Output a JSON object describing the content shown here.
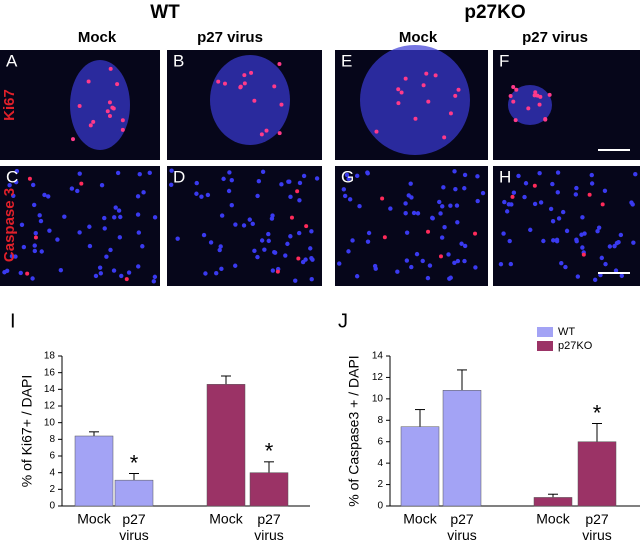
{
  "figure": {
    "groups": [
      "WT",
      "p27KO"
    ],
    "columns": [
      "Mock",
      "p27 virus",
      "Mock",
      "p27 virus"
    ],
    "rows": [
      "Ki67",
      "Caspase 3"
    ],
    "panels": [
      "A",
      "B",
      "E",
      "F",
      "C",
      "D",
      "G",
      "H"
    ]
  },
  "chart_data": [
    {
      "type": "bar",
      "label": "I",
      "y_label": "% of Ki67+ / DAPI",
      "categories": [
        "Mock",
        "p27 virus",
        "Mock",
        "p27 virus"
      ],
      "series": [
        {
          "color": "#a3a3f5",
          "values": [
            8.4,
            3.1,
            null,
            null
          ],
          "errors": [
            0.5,
            0.8,
            null,
            null
          ]
        },
        {
          "color": "#9b3366",
          "values": [
            null,
            null,
            14.6,
            4.0
          ],
          "errors": [
            null,
            null,
            1.0,
            1.3
          ]
        }
      ],
      "significance": [
        null,
        "*",
        null,
        "*"
      ],
      "ylim": [
        0,
        18
      ],
      "yticks": [
        0,
        2,
        4,
        6,
        8,
        10,
        12,
        14,
        16,
        18
      ]
    },
    {
      "type": "bar",
      "label": "J",
      "y_label": "% of Caspase3 + / DAPI",
      "categories": [
        "Mock",
        "p27 virus",
        "Mock",
        "p27 virus"
      ],
      "series": [
        {
          "name": "WT",
          "color": "#a3a3f5",
          "values": [
            7.4,
            10.8,
            null,
            null
          ],
          "errors": [
            1.6,
            1.9,
            null,
            null
          ]
        },
        {
          "name": "p27KO",
          "color": "#9b3366",
          "values": [
            null,
            null,
            0.8,
            6.0
          ],
          "errors": [
            null,
            null,
            0.3,
            1.7
          ]
        }
      ],
      "significance": [
        null,
        null,
        null,
        "*"
      ],
      "ylim": [
        0,
        14
      ],
      "yticks": [
        0,
        2,
        4,
        6,
        8,
        10,
        12,
        14
      ],
      "legend": "top-right"
    }
  ]
}
